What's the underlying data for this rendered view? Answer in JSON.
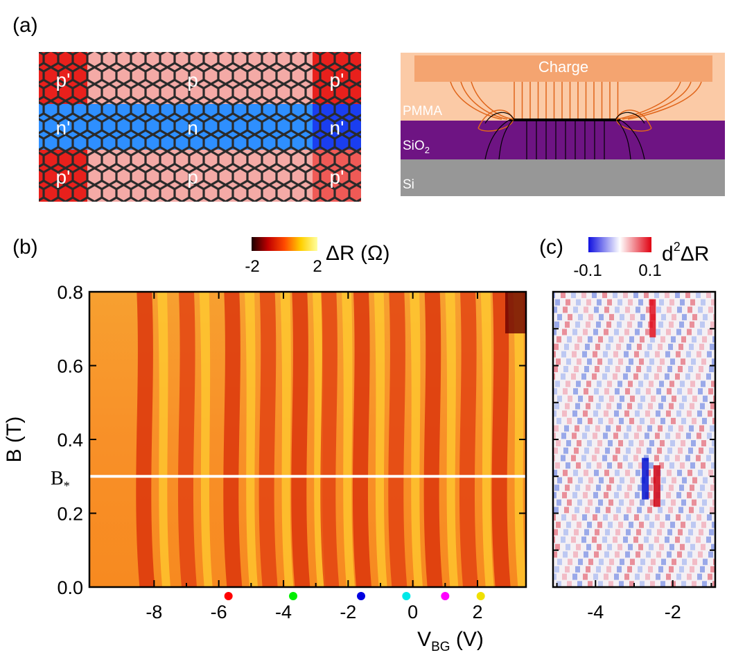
{
  "panels": {
    "a": {
      "label": "(a)",
      "lattice": {
        "top_row": [
          "p'",
          "p",
          "p'"
        ],
        "middle_row": [
          "n'",
          "n",
          "n'"
        ],
        "bottom_row": [
          "p'",
          "p",
          "p'"
        ],
        "colors": {
          "p_prime": "#e8201c",
          "p": "#f4aaa6",
          "n_prime": "#1a3ef0",
          "n": "#2e8fff",
          "edge": "#2a2a2a"
        }
      },
      "cross_section": {
        "charge_label": "Charge",
        "pmma_label": "PMMA",
        "sio2_label": "SiO",
        "sio2_sub": "2",
        "si_label": "Si",
        "colors": {
          "charge": "#f4a470",
          "pmma": "#fbcaa6",
          "sio2": "#6e1483",
          "si": "#979797",
          "field_orange": "#e0651a",
          "field_black": "#000000"
        }
      }
    },
    "b": {
      "label": "(b)",
      "colorbar": {
        "min_label": "-2",
        "max_label": "2",
        "title": "ΔR (Ω)",
        "colors": [
          "#1a0000",
          "#c00000",
          "#ff4a00",
          "#ffd000",
          "#ffffa0"
        ]
      },
      "bstar_label": "B",
      "bstar_sub": "*"
    },
    "c": {
      "label": "(c)",
      "colorbar": {
        "min_label": "-0.1",
        "max_label": "0.1",
        "title_pre": "d",
        "title_sup": "2",
        "title_post": "ΔR",
        "colors": [
          "#1010e0",
          "#ffffff",
          "#e00010"
        ]
      }
    }
  },
  "chart_data": [
    {
      "type": "heatmap",
      "panel": "b",
      "xlabel": "V",
      "xlabel_sub": "BG",
      "xlabel_unit": " (V)",
      "ylabel": "B (T)",
      "xlim": [
        -10,
        3.5
      ],
      "ylim": [
        0,
        0.8
      ],
      "x_ticks": [
        -8,
        -6,
        -4,
        -2,
        0,
        2
      ],
      "x_tick_labels": [
        "-8",
        "-6",
        "-4",
        "-2",
        "0",
        "2"
      ],
      "y_ticks": [
        0.0,
        0.2,
        0.4,
        0.6,
        0.8
      ],
      "y_tick_labels": [
        "0.0",
        "0.2",
        "0.4",
        "0.6",
        "0.8"
      ],
      "colorbar_range": [
        -2,
        2
      ],
      "bstar_value": 0.3,
      "red_stripes_x": [
        -8.3,
        -7.0,
        -5.6,
        -4.5,
        -3.5,
        -2.6,
        -1.6,
        -0.5,
        0.6,
        1.7,
        2.7
      ],
      "markers": [
        {
          "x": -5.7,
          "color": "#ff0000"
        },
        {
          "x": -3.7,
          "color": "#00ee00"
        },
        {
          "x": -1.6,
          "color": "#0000e0"
        },
        {
          "x": -0.2,
          "color": "#00e8e8"
        },
        {
          "x": 1.0,
          "color": "#ff00ff"
        },
        {
          "x": 2.1,
          "color": "#f0e000"
        }
      ]
    },
    {
      "type": "heatmap",
      "panel": "c",
      "xlim": [
        -5.1,
        -0.9
      ],
      "ylim": [
        0,
        0.8
      ],
      "x_ticks": [
        -4,
        -2
      ],
      "x_tick_labels": [
        "-4",
        "-2"
      ],
      "y_ticks": [
        0.0,
        0.1,
        0.2,
        0.3,
        0.4,
        0.5,
        0.6,
        0.7,
        0.8
      ],
      "colorbar_range": [
        -0.1,
        0.1
      ]
    }
  ]
}
